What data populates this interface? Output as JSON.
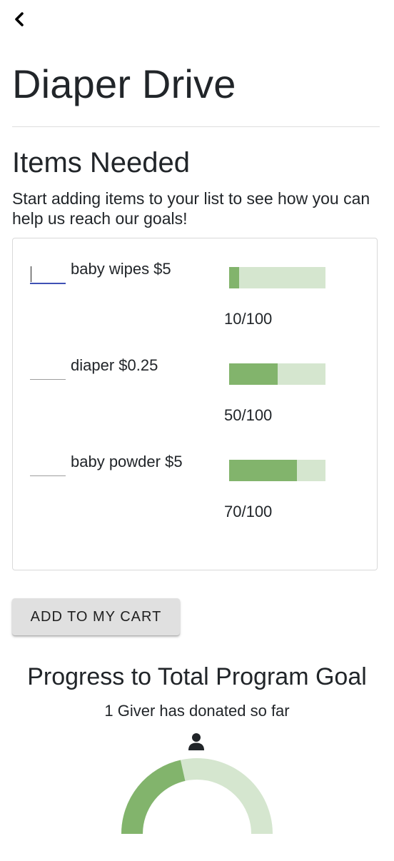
{
  "header": {
    "back_icon": "chevron-left-icon",
    "title": "Diaper Drive"
  },
  "items_section": {
    "heading": "Items Needed",
    "intro": "Start adding items to your list to see how you can help us reach our goals!",
    "items": [
      {
        "label": "baby wipes $5",
        "quantity": "",
        "count_text": "10/100",
        "current": 10,
        "goal": 100
      },
      {
        "label": "diaper $0.25",
        "quantity": "",
        "count_text": "50/100",
        "current": 50,
        "goal": 100
      },
      {
        "label": "baby powder $5",
        "quantity": "",
        "count_text": "70/100",
        "current": 70,
        "goal": 100
      }
    ]
  },
  "cart_button": {
    "label": "ADD TO MY CART"
  },
  "program_progress": {
    "heading": "Progress to Total Program Goal",
    "givers_text": "1 Giver has donated so far",
    "giver_icon": "person-icon",
    "gauge_fraction": 0.43
  },
  "colors": {
    "progress_fill": "#82b46c",
    "progress_track": "#d5e6cf",
    "input_focus": "#3f51b5",
    "button_bg": "#e0e0e0"
  }
}
